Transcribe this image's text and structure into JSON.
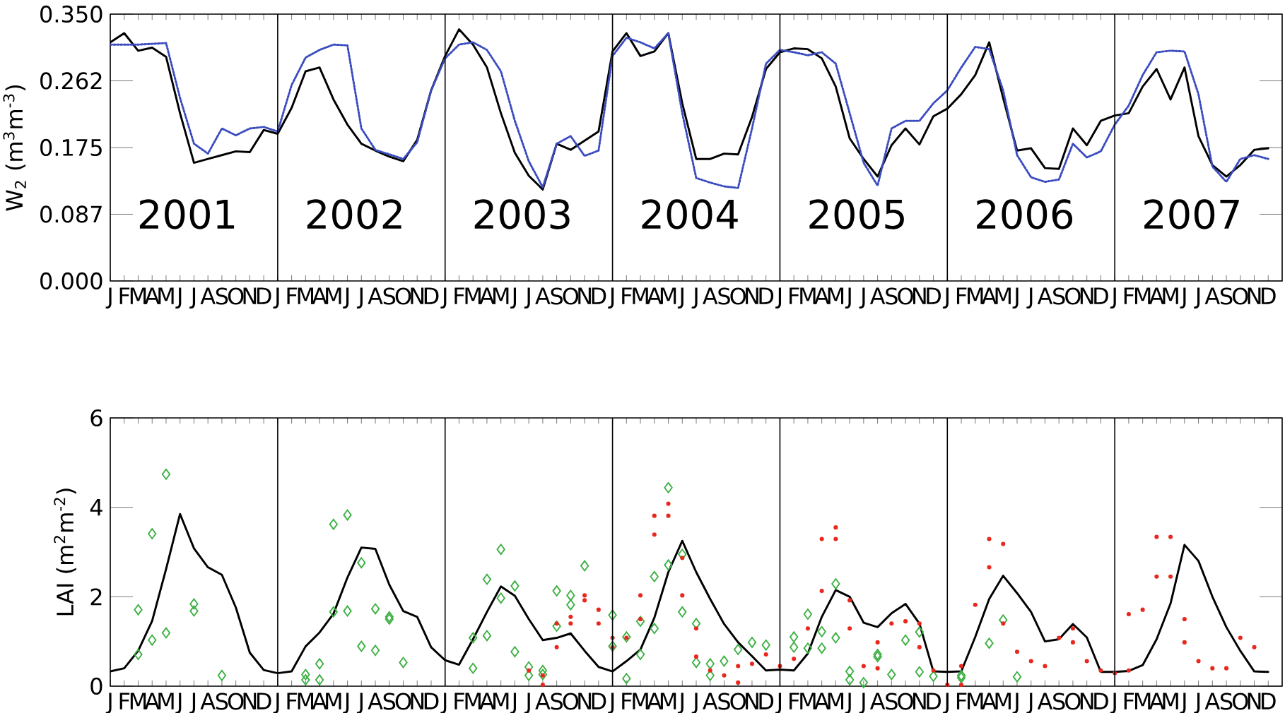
{
  "chart_data": [
    {
      "type": "line",
      "ylabel": "W$_{2}$ (m$^{3}$m$^{-3}$)",
      "ylim": [
        0,
        0.35
      ],
      "grid": "x",
      "categories": [
        "J",
        "F",
        "M",
        "A",
        "M",
        "J",
        "J",
        "A",
        "S",
        "O",
        "N",
        "D",
        "J",
        "F",
        "M",
        "A",
        "M",
        "J",
        "J",
        "A",
        "S",
        "O",
        "N",
        "D",
        "J",
        "F",
        "M",
        "A",
        "M",
        "J",
        "J",
        "A",
        "S",
        "O",
        "N",
        "D",
        "J",
        "F",
        "M",
        "A",
        "M",
        "J",
        "J",
        "A",
        "S",
        "O",
        "N",
        "D",
        "J",
        "F",
        "M",
        "A",
        "M",
        "J",
        "J",
        "A",
        "S",
        "O",
        "N",
        "D",
        "J",
        "F",
        "M",
        "A",
        "M",
        "J",
        "J",
        "A",
        "S",
        "O",
        "N",
        "D",
        "J",
        "F",
        "M",
        "A",
        "M",
        "J",
        "J",
        "A",
        "S",
        "O",
        "N",
        "D"
      ],
      "yticks": [
        {
          "value": 0,
          "label": "0.000"
        },
        {
          "value": 0.0875,
          "label": "0.087"
        },
        {
          "value": 0.175,
          "label": "0.175"
        },
        {
          "value": 0.2625,
          "label": "0.262"
        },
        {
          "value": 0.35,
          "label": "0.350"
        }
      ],
      "annotations": [
        "2001",
        "2002",
        "2003",
        "2004",
        "2005",
        "2006",
        "2007"
      ],
      "series": [
        {
          "color": "#000000",
          "values": [
            0.313,
            0.325,
            0.302,
            0.306,
            0.294,
            0.22,
            0.155,
            0.16,
            0.165,
            0.17,
            0.169,
            0.198,
            0.193,
            0.227,
            0.275,
            0.28,
            0.238,
            0.205,
            0.18,
            0.171,
            0.163,
            0.157,
            0.185,
            0.25,
            0.295,
            0.33,
            0.31,
            0.28,
            0.22,
            0.168,
            0.138,
            0.12,
            0.18,
            0.172,
            0.184,
            0.196,
            0.301,
            0.325,
            0.295,
            0.301,
            0.325,
            0.233,
            0.16,
            0.16,
            0.167,
            0.166,
            0.215,
            0.278,
            0.3,
            0.305,
            0.304,
            0.292,
            0.255,
            0.187,
            0.16,
            0.137,
            0.178,
            0.2,
            0.179,
            0.216,
            0.226,
            0.245,
            0.27,
            0.313,
            0.24,
            0.171,
            0.174,
            0.148,
            0.147,
            0.2,
            0.178,
            0.21,
            0.217,
            0.22,
            0.255,
            0.278,
            0.238,
            0.28,
            0.19,
            0.152,
            0.137,
            0.152,
            0.172,
            0.174
          ]
        },
        {
          "color": "#3b4cc0",
          "line_style": "dotted",
          "values": [
            0.31,
            0.31,
            0.31,
            0.311,
            0.312,
            0.24,
            0.18,
            0.167,
            0.2,
            0.191,
            0.2,
            0.202,
            0.196,
            0.257,
            0.293,
            0.303,
            0.31,
            0.309,
            0.2,
            0.172,
            0.166,
            0.16,
            0.182,
            0.25,
            0.292,
            0.31,
            0.313,
            0.303,
            0.275,
            0.21,
            0.157,
            0.123,
            0.18,
            0.19,
            0.164,
            0.171,
            0.295,
            0.319,
            0.313,
            0.305,
            0.325,
            0.22,
            0.135,
            0.129,
            0.124,
            0.122,
            0.2,
            0.285,
            0.303,
            0.3,
            0.296,
            0.3,
            0.285,
            0.22,
            0.155,
            0.125,
            0.2,
            0.21,
            0.21,
            0.233,
            0.25,
            0.28,
            0.307,
            0.304,
            0.25,
            0.165,
            0.136,
            0.13,
            0.133,
            0.18,
            0.162,
            0.17,
            0.205,
            0.23,
            0.27,
            0.3,
            0.302,
            0.301,
            0.245,
            0.15,
            0.13,
            0.16,
            0.165,
            0.16
          ]
        }
      ]
    },
    {
      "type": "line",
      "ylabel": "LAI (m$^{2}$m$^{-2}$)",
      "ylim": [
        0,
        6
      ],
      "grid": "x",
      "categories": [
        "J",
        "F",
        "M",
        "A",
        "M",
        "J",
        "J",
        "A",
        "S",
        "O",
        "N",
        "D",
        "J",
        "F",
        "M",
        "A",
        "M",
        "J",
        "J",
        "A",
        "S",
        "O",
        "N",
        "D",
        "J",
        "F",
        "M",
        "A",
        "M",
        "J",
        "J",
        "A",
        "S",
        "O",
        "N",
        "D",
        "J",
        "F",
        "M",
        "A",
        "M",
        "J",
        "J",
        "A",
        "S",
        "O",
        "N",
        "D",
        "J",
        "F",
        "M",
        "A",
        "M",
        "J",
        "J",
        "A",
        "S",
        "O",
        "N",
        "D",
        "J",
        "F",
        "M",
        "A",
        "M",
        "J",
        "J",
        "A",
        "S",
        "O",
        "N",
        "D",
        "J",
        "F",
        "M",
        "A",
        "M",
        "J",
        "J",
        "A",
        "S",
        "O",
        "N",
        "D"
      ],
      "yticks": [
        0,
        2,
        4,
        6
      ],
      "series": [
        {
          "color": "#000000",
          "values": [
            0.33,
            0.4,
            0.79,
            1.46,
            2.62,
            3.85,
            3.08,
            2.66,
            2.49,
            1.76,
            0.75,
            0.36,
            0.29,
            0.33,
            0.89,
            1.2,
            1.62,
            2.43,
            3.1,
            3.07,
            2.27,
            1.68,
            1.55,
            0.87,
            0.58,
            0.48,
            1.05,
            1.66,
            2.23,
            2.02,
            1.5,
            1.03,
            1.08,
            1.18,
            0.79,
            0.43,
            0.33,
            0.56,
            0.82,
            1.53,
            2.55,
            3.25,
            2.55,
            1.95,
            1.39,
            0.98,
            0.67,
            0.35,
            0.37,
            0.35,
            0.73,
            1.55,
            2.15,
            2.0,
            1.42,
            1.32,
            1.63,
            1.84,
            1.4,
            0.33,
            0.32,
            0.33,
            1.1,
            1.95,
            2.47,
            2.08,
            1.66,
            1.0,
            1.05,
            1.39,
            1.09,
            0.32,
            0.32,
            0.34,
            0.47,
            1.05,
            1.85,
            3.16,
            2.8,
            2.0,
            1.32,
            0.79,
            0.33,
            0.32
          ]
        },
        {
          "type": "scatter",
          "marker": "circle",
          "color": "#e8281e",
          "values": [
            null,
            null,
            null,
            null,
            null,
            null,
            null,
            null,
            null,
            null,
            null,
            null,
            null,
            null,
            null,
            null,
            null,
            null,
            null,
            null,
            null,
            null,
            null,
            null,
            null,
            null,
            null,
            null,
            null,
            null,
            0.35,
            0.03,
            0.87,
            1.4,
            1.92,
            1.71,
            1.08,
            1.08,
            1.5,
            3.39,
            4.08,
            2.87,
            1.29,
            0.35,
            0.24,
            0.08,
            0.5,
            0.71,
            0.45,
            0.61,
            1.29,
            2.13,
            3.55,
            1.92,
            0.45,
            0.4,
            1.4,
            1.45,
            1.4,
            0.35,
            0.03,
            0.03,
            1.82,
            2.66,
            3.18,
            0.77,
            0.56,
            0.45,
            1.08,
            1.29,
            0.56,
            0.35,
            0.29,
            0.35,
            1.71,
            3.34,
            3.34,
            1.5,
            0.56,
            0.4,
            0.4,
            1.08,
            0.87,
            null
          ]
        },
        {
          "type": "scatter",
          "marker": "circle",
          "color": "#e8281e",
          "values": [
            null,
            null,
            null,
            null,
            null,
            null,
            null,
            null,
            null,
            null,
            null,
            null,
            null,
            null,
            null,
            null,
            null,
            null,
            null,
            null,
            null,
            null,
            null,
            null,
            null,
            null,
            null,
            null,
            null,
            null,
            null,
            0.24,
            1.4,
            1.55,
            2.03,
            1.4,
            0.87,
            null,
            2.03,
            3.81,
            3.81,
            2.03,
            0.66,
            null,
            null,
            0.45,
            null,
            null,
            null,
            null,
            null,
            3.29,
            3.29,
            1.29,
            null,
            0.98,
            null,
            null,
            0.87,
            null,
            null,
            0.45,
            null,
            3.29,
            1.4,
            null,
            null,
            null,
            null,
            0.98,
            null,
            null,
            null,
            1.61,
            null,
            2.45,
            2.45,
            0.98,
            null,
            null,
            null,
            null,
            null,
            null
          ]
        },
        {
          "type": "scatter",
          "marker": "diamond",
          "color": "#3cb043",
          "values": [
            null,
            null,
            1.71,
            3.41,
            4.74,
            null,
            1.84,
            null,
            0.24,
            null,
            null,
            null,
            null,
            null,
            0.26,
            0.5,
            3.62,
            3.83,
            2.76,
            1.73,
            1.55,
            0.53,
            null,
            null,
            null,
            null,
            1.08,
            2.39,
            3.06,
            2.24,
            0.43,
            0.35,
            2.13,
            2.03,
            2.69,
            null,
            1.59,
            1.1,
            1.45,
            2.45,
            4.44,
            2.95,
            1.4,
            0.5,
            0.56,
            0.82,
            0.98,
            0.92,
            null,
            1.1,
            1.61,
            1.22,
            2.29,
            0.33,
            0.08,
            0.71,
            0.26,
            1.03,
            1.21,
            0.22,
            null,
            0.24,
            null,
            0.96,
            1.48,
            0.21,
            null,
            null,
            null,
            null,
            null,
            null,
            null,
            null,
            null,
            null,
            null,
            null,
            null,
            null,
            null,
            null,
            null,
            null
          ]
        },
        {
          "type": "scatter",
          "marker": "diamond",
          "color": "#3cb043",
          "values": [
            null,
            null,
            0.71,
            1.03,
            1.19,
            null,
            1.68,
            null,
            null,
            null,
            null,
            null,
            null,
            null,
            0.14,
            0.14,
            1.66,
            1.68,
            0.89,
            0.8,
            1.5,
            null,
            null,
            null,
            null,
            null,
            0.4,
            1.13,
            1.97,
            0.77,
            0.24,
            0.26,
            1.34,
            1.82,
            null,
            null,
            0.89,
            0.17,
            0.71,
            1.29,
            2.71,
            1.66,
            0.53,
            0.24,
            null,
            null,
            null,
            null,
            null,
            0.87,
            0.85,
            0.85,
            1.08,
            0.14,
            null,
            0.66,
            null,
            null,
            0.32,
            null,
            null,
            0.19,
            null,
            null,
            null,
            null,
            null,
            null,
            null,
            null,
            null,
            null,
            null,
            null,
            null,
            null,
            null,
            null,
            null,
            null,
            null,
            null,
            null,
            null
          ]
        }
      ]
    }
  ]
}
